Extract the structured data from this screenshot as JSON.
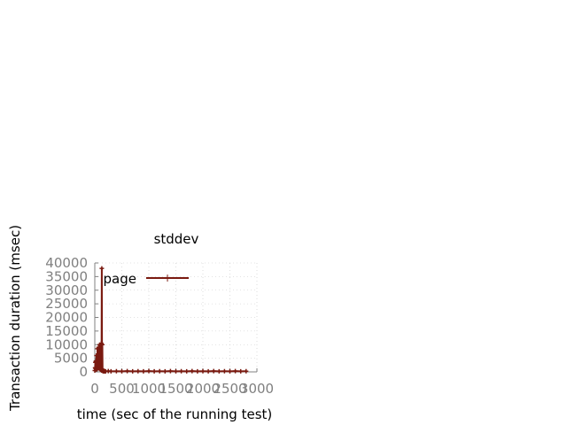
{
  "chart_data": {
    "type": "line",
    "title": "stddev",
    "xlabel": "time (sec of the running test)",
    "ylabel": "Transaction duration (msec)",
    "xlim": [
      0,
      3000
    ],
    "ylim": [
      0,
      40000
    ],
    "xticks": [
      0,
      500,
      1000,
      1500,
      2000,
      2500,
      3000
    ],
    "yticks": [
      0,
      5000,
      10000,
      15000,
      20000,
      25000,
      30000,
      35000,
      40000
    ],
    "grid": true,
    "legend_position": "top-right",
    "series": [
      {
        "name": "page",
        "color": "#7a1a10",
        "x": [
          0,
          5,
          10,
          15,
          20,
          25,
          30,
          35,
          40,
          45,
          50,
          55,
          60,
          65,
          70,
          75,
          80,
          85,
          90,
          95,
          100,
          105,
          110,
          115,
          120,
          125,
          130,
          135,
          140,
          145,
          150,
          155,
          160,
          170,
          180,
          190,
          200,
          250,
          300,
          400,
          500,
          600,
          700,
          800,
          900,
          1000,
          1100,
          1200,
          1300,
          1400,
          1500,
          1600,
          1700,
          1800,
          1900,
          2000,
          2100,
          2200,
          2300,
          2400,
          2500,
          2600,
          2700,
          2800
        ],
        "y": [
          500,
          1500,
          3500,
          1200,
          4000,
          800,
          6000,
          2000,
          3000,
          1000,
          8500,
          2500,
          5000,
          1500,
          9000,
          3000,
          7000,
          1200,
          10000,
          2000,
          6500,
          800,
          9000,
          1500,
          10500,
          500,
          38000,
          1000,
          10000,
          500,
          300,
          200,
          500,
          200,
          300,
          150,
          200,
          300,
          200,
          250,
          200,
          300,
          200,
          250,
          200,
          300,
          200,
          250,
          200,
          300,
          200,
          250,
          200,
          300,
          200,
          250,
          200,
          300,
          200,
          250,
          200,
          300,
          200,
          250
        ]
      }
    ]
  }
}
